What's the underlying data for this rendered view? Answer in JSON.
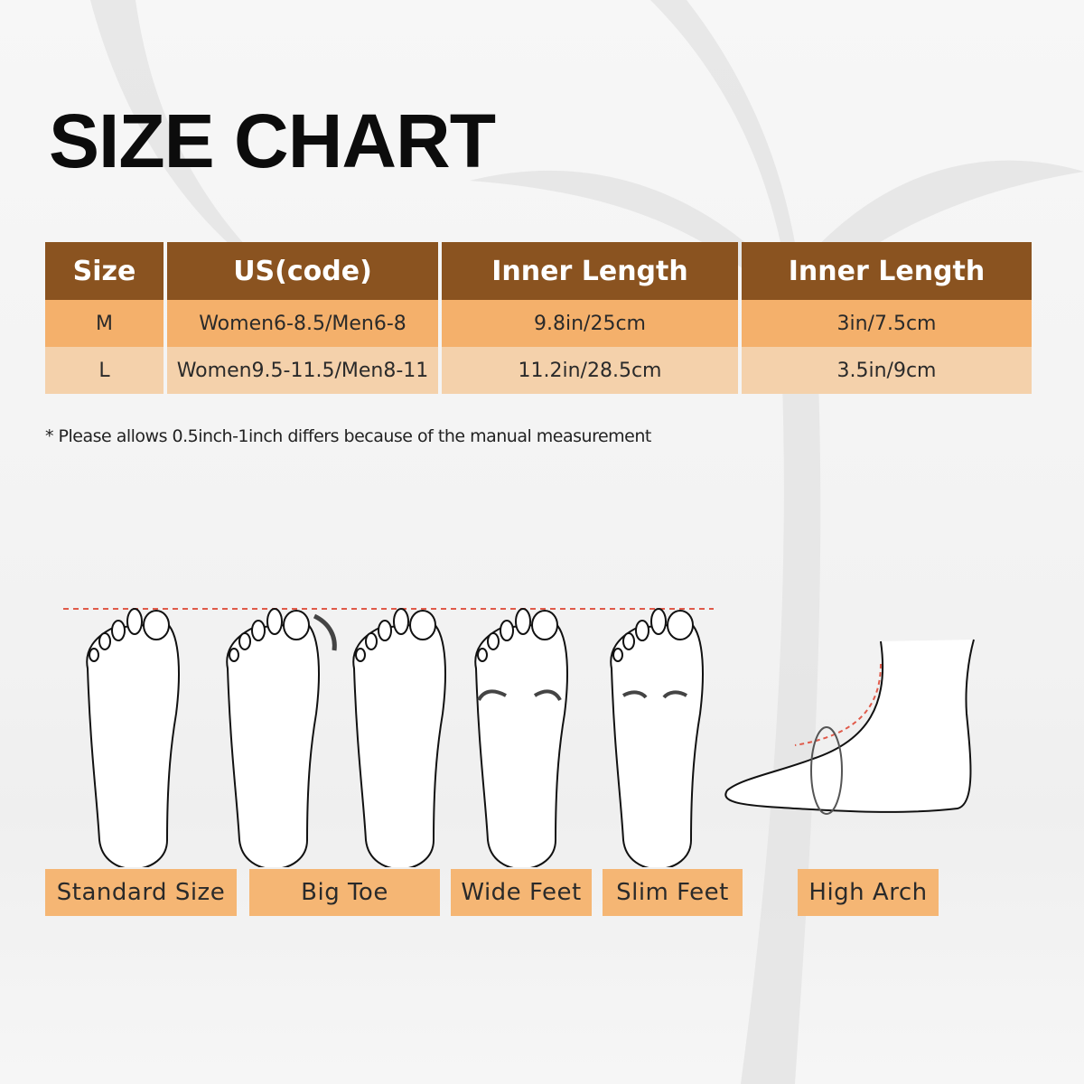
{
  "title": "SIZE CHART",
  "table": {
    "headers": [
      "Size",
      "US(code)",
      "Inner Length",
      "Inner Length"
    ],
    "rows": [
      [
        "M",
        "Women6-8.5/Men6-8",
        "9.8in/25cm",
        "3in/7.5cm"
      ],
      [
        "L",
        "Women9.5-11.5/Men8-11",
        "11.2in/28.5cm",
        "3.5in/9cm"
      ]
    ],
    "colors": {
      "header": "#8a5320",
      "row_m": "#f4b06b",
      "row_l": "#f4d1ab"
    }
  },
  "note": "* Please allows 0.5inch-1inch differs because of the manual measurement",
  "foot_types": [
    "Standard Size",
    "Big Toe",
    "Wide Feet",
    "Slim Feet",
    "High Arch"
  ],
  "label_color": "#f5b674"
}
